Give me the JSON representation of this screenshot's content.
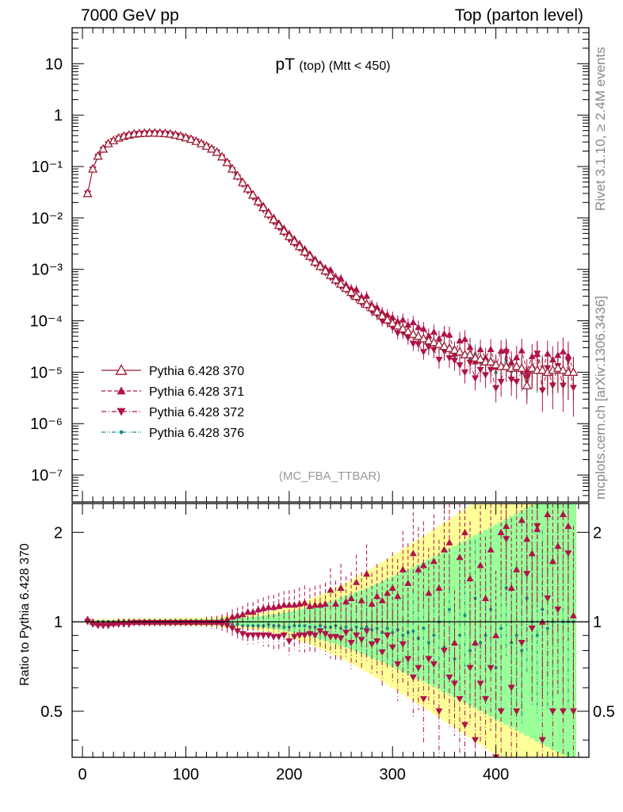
{
  "header": {
    "left": "7000 GeV pp",
    "right": "Top (parton level)"
  },
  "side_labels": {
    "rivet": "Rivet 3.1.10, ≥ 2.4M events",
    "mcplots": "mcplots.cern.ch [arXiv:1306.3436]"
  },
  "colors": {
    "s370": "#9b1b30",
    "s371": "#b0124a",
    "s372": "#b0124a",
    "s376": "#1f8a88",
    "band_yellow": "#ffff99",
    "band_green": "#99ff99"
  },
  "chart_data": [
    {
      "type": "scatter",
      "panel": "main",
      "title": "pT (top) (Mtt < 450)",
      "title_main": "pT",
      "title_small": "(top)",
      "title_tail": "(Mtt < 450)",
      "watermark": "(MC_FBA_TTBAR)",
      "xlabel": "",
      "ylabel": "",
      "xlim": [
        -10,
        490
      ],
      "ylim": [
        3e-08,
        50
      ],
      "yscale": "log",
      "y_tick_labels": [
        "10⁻⁷",
        "10⁻⁶",
        "10⁻⁵",
        "10⁻⁴",
        "10⁻³",
        "10⁻²",
        "10⁻¹",
        "1",
        "10"
      ],
      "legend_position": "bottom-left",
      "series": [
        {
          "name": "Pythia 6.428 370",
          "marker": "open-triangle-up",
          "line": "solid",
          "color_key": "s370",
          "x": [
            5,
            10,
            15,
            20,
            25,
            30,
            35,
            40,
            45,
            50,
            55,
            60,
            65,
            70,
            75,
            80,
            85,
            90,
            95,
            100,
            105,
            110,
            115,
            120,
            125,
            130,
            135,
            140,
            145,
            150,
            155,
            160,
            165,
            170,
            175,
            180,
            185,
            190,
            195,
            200,
            205,
            210,
            215,
            220,
            225,
            230,
            235,
            240,
            245,
            250,
            255,
            260,
            265,
            270,
            275,
            280,
            285,
            290,
            295,
            300,
            305,
            310,
            315,
            320,
            325,
            330,
            335,
            340,
            345,
            350,
            355,
            360,
            365,
            370,
            375,
            380,
            385,
            390,
            395,
            400,
            405,
            410,
            415,
            420,
            425,
            430,
            435,
            440,
            445,
            450,
            455,
            460,
            465,
            470,
            475
          ],
          "y": [
            0.03,
            0.09,
            0.16,
            0.22,
            0.28,
            0.32,
            0.36,
            0.39,
            0.41,
            0.43,
            0.44,
            0.445,
            0.45,
            0.45,
            0.445,
            0.44,
            0.43,
            0.41,
            0.39,
            0.365,
            0.34,
            0.31,
            0.28,
            0.25,
            0.22,
            0.19,
            0.155,
            0.12,
            0.09,
            0.066,
            0.049,
            0.037,
            0.028,
            0.021,
            0.016,
            0.012,
            0.0093,
            0.0072,
            0.0056,
            0.0044,
            0.0035,
            0.0028,
            0.0022,
            0.0018,
            0.0014,
            0.00115,
            0.00094,
            0.00077,
            0.00063,
            0.00052,
            0.00043,
            0.00036,
            0.0003,
            0.00025,
            0.00021,
            0.00018,
            0.00015,
            0.000125,
            0.000105,
            9e-05,
            8e-05,
            7e-05,
            6.2e-05,
            5.5e-05,
            5e-05,
            4.5e-05,
            4.1e-05,
            3.8e-05,
            3.5e-05,
            3.2e-05,
            2.9e-05,
            2.7e-05,
            2.5e-05,
            2.2e-05,
            2.2e-05,
            1.9e-05,
            1.8e-05,
            1.6e-05,
            1.6e-05,
            1.4e-05,
            1.3e-05,
            1.3e-05,
            1.2e-05,
            1.3e-05,
            1.2e-05,
            5.5e-06,
            1.2e-05,
            1.1e-05,
            1.1e-05,
            1e-05,
            1.1e-05,
            1.2e-05,
            1.1e-05,
            1e-05,
            1e-05
          ]
        },
        {
          "name": "Pythia 6.428 371",
          "marker": "filled-triangle-up",
          "line": "dashed",
          "color_key": "s371",
          "ratio": [
            1.02,
            1.0,
            0.99,
            0.99,
            0.99,
            0.99,
            1.0,
            1.0,
            1.0,
            1.0,
            1.0,
            1.0,
            1.0,
            1.0,
            1.0,
            1.0,
            1.0,
            1.0,
            1.0,
            1.0,
            1.0,
            1.0,
            1.0,
            1.0,
            1.0,
            1.0,
            1.01,
            1.02,
            1.04,
            1.05,
            1.06,
            1.08,
            1.08,
            1.1,
            1.11,
            1.12,
            1.12,
            1.13,
            1.14,
            1.14,
            1.14,
            1.15,
            1.16,
            1.13,
            1.14,
            1.14,
            1.15,
            1.28,
            1.15,
            1.3,
            1.17,
            1.2,
            1.36,
            1.18,
            1.45,
            1.15,
            1.22,
            1.18,
            1.25,
            1.3,
            1.22,
            1.5,
            1.35,
            1.7,
            1.5,
            1.55,
            1.25,
            1.6,
            1.3,
            1.75,
            1.85,
            0.85,
            1.65,
            2.0,
            1.4,
            0.85,
            1.55,
            1.2,
            1.75,
            0.9,
            2.0,
            2.1,
            1.3,
            1.5,
            2.2,
            1.9,
            1.7,
            2.05,
            1.0,
            2.3,
            1.6,
            1.8,
            2.3,
            2.1,
            1.05
          ]
        },
        {
          "name": "Pythia 6.428 372",
          "marker": "filled-triangle-down",
          "line": "dash-dot",
          "color_key": "s372",
          "ratio": [
            1.0,
            0.98,
            0.97,
            0.97,
            0.97,
            0.98,
            0.98,
            0.98,
            0.98,
            0.99,
            0.99,
            0.99,
            0.99,
            0.99,
            0.99,
            0.99,
            0.99,
            0.99,
            0.99,
            0.99,
            0.99,
            0.99,
            0.99,
            0.99,
            0.99,
            0.99,
            0.98,
            0.97,
            0.95,
            0.93,
            0.91,
            0.9,
            0.9,
            0.9,
            0.9,
            0.9,
            0.89,
            0.89,
            0.9,
            0.86,
            0.89,
            0.9,
            0.9,
            0.91,
            0.9,
            0.93,
            0.91,
            0.89,
            0.89,
            0.88,
            0.92,
            0.85,
            0.9,
            0.87,
            0.93,
            0.84,
            0.86,
            0.79,
            0.9,
            0.82,
            0.72,
            0.84,
            0.75,
            0.65,
            0.7,
            0.55,
            0.75,
            0.72,
            0.5,
            0.8,
            0.65,
            0.62,
            0.55,
            0.45,
            0.7,
            0.4,
            0.62,
            0.55,
            0.7,
            0.35,
            0.5,
            1.9,
            0.6,
            0.5,
            0.85,
            1.45,
            0.95,
            2.1,
            0.4,
            1.2,
            0.5,
            1.1,
            0.5,
            1.7,
            0.5
          ]
        },
        {
          "name": "Pythia 6.428 376",
          "marker": "dot",
          "line": "dash-dot-dot",
          "color_key": "s376",
          "ratio": [
            1.01,
            1.0,
            1.0,
            1.0,
            1.0,
            1.0,
            1.0,
            1.0,
            1.0,
            1.0,
            1.0,
            1.0,
            1.0,
            1.0,
            1.0,
            1.0,
            1.0,
            1.0,
            1.0,
            1.0,
            1.0,
            1.0,
            1.0,
            1.0,
            1.0,
            1.0,
            1.0,
            0.99,
            0.98,
            0.98,
            0.97,
            0.97,
            0.97,
            0.97,
            0.97,
            0.98,
            0.97,
            0.97,
            0.96,
            0.96,
            0.97,
            0.97,
            0.97,
            0.96,
            0.96,
            0.97,
            0.96,
            0.96,
            0.97,
            0.95,
            0.96,
            0.94,
            0.96,
            0.95,
            0.96,
            0.94,
            0.95,
            0.92,
            0.95,
            0.92,
            0.94,
            0.9,
            0.92,
            0.93,
            0.88,
            0.95,
            0.85,
            0.9,
            1.0,
            0.82,
            1.1,
            0.75,
            0.9,
            1.05,
            0.8,
            1.2,
            0.85,
            0.9,
            1.1,
            0.7,
            0.95,
            1.3,
            0.85,
            0.9,
            0.8,
            1.2,
            1.0,
            0.9,
            1.1,
            0.95,
            1.0,
            1.1,
            1.0,
            1.0,
            1.0
          ]
        }
      ]
    },
    {
      "type": "scatter",
      "panel": "ratio",
      "ylabel": "Ratio to Pythia 6.428 370",
      "xlabel": "",
      "xlim": [
        -10,
        490
      ],
      "ylim": [
        0.35,
        2.5
      ],
      "yscale": "log",
      "xticks": [
        0,
        100,
        200,
        300,
        400
      ],
      "yticks": [
        0.5,
        1,
        2
      ],
      "reference_line": 1
    }
  ]
}
